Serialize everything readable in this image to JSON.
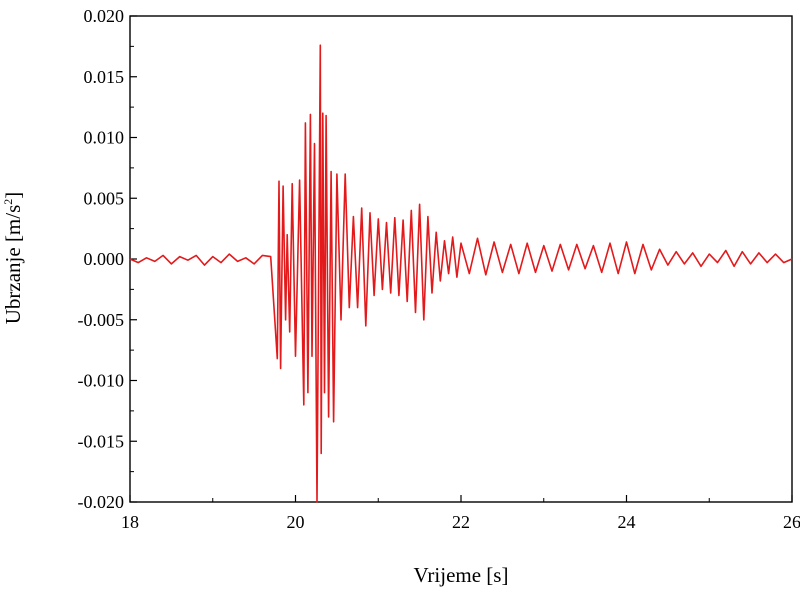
{
  "chart_data": {
    "type": "line",
    "xlabel": "Vrijeme [s]",
    "ylabel": "Ubrzanje [m/s",
    "ylabel_sup": "2",
    "ylabel_close": "]",
    "xlim": [
      18,
      26
    ],
    "ylim": [
      -0.02,
      0.02
    ],
    "x_ticks": [
      "18",
      "20",
      "22",
      "24",
      "26"
    ],
    "x_tick_values": [
      18,
      20,
      22,
      24,
      26
    ],
    "y_ticks": [
      "0.020",
      "0.015",
      "0.010",
      "0.005",
      "0.000",
      "-0.005",
      "-0.010",
      "-0.015",
      "-0.020"
    ],
    "y_tick_values": [
      0.02,
      0.015,
      0.01,
      0.005,
      0.0,
      -0.005,
      -0.01,
      -0.015,
      -0.02
    ],
    "grid": false,
    "series": [
      {
        "color": "#e31a1c",
        "x": [
          18.0,
          18.1,
          18.2,
          18.3,
          18.4,
          18.5,
          18.6,
          18.7,
          18.8,
          18.9,
          19.0,
          19.1,
          19.2,
          19.3,
          19.4,
          19.5,
          19.6,
          19.7,
          19.78,
          19.8,
          19.82,
          19.85,
          19.88,
          19.9,
          19.93,
          19.96,
          20.0,
          20.05,
          20.1,
          20.12,
          20.15,
          20.18,
          20.2,
          20.23,
          20.26,
          20.3,
          20.31,
          20.33,
          20.35,
          20.37,
          20.4,
          20.43,
          20.46,
          20.5,
          20.55,
          20.6,
          20.65,
          20.7,
          20.75,
          20.8,
          20.85,
          20.9,
          20.95,
          21.0,
          21.05,
          21.1,
          21.15,
          21.2,
          21.25,
          21.3,
          21.35,
          21.4,
          21.45,
          21.5,
          21.55,
          21.6,
          21.65,
          21.7,
          21.75,
          21.8,
          21.85,
          21.9,
          21.95,
          22.0,
          22.1,
          22.2,
          22.3,
          22.4,
          22.5,
          22.6,
          22.7,
          22.8,
          22.9,
          23.0,
          23.1,
          23.2,
          23.3,
          23.4,
          23.5,
          23.6,
          23.7,
          23.8,
          23.9,
          24.0,
          24.1,
          24.2,
          24.3,
          24.4,
          24.5,
          24.6,
          24.7,
          24.8,
          24.9,
          25.0,
          25.1,
          25.2,
          25.3,
          25.4,
          25.5,
          25.6,
          25.7,
          25.8,
          25.9,
          26.0
        ],
        "y": [
          0.0,
          -0.0003,
          0.0001,
          -0.0002,
          0.0003,
          -0.0004,
          0.0002,
          -0.0001,
          0.0003,
          -0.0005,
          0.0002,
          -0.0003,
          0.0004,
          -0.0002,
          0.0001,
          -0.0004,
          0.0003,
          0.0002,
          -0.0082,
          0.0064,
          -0.009,
          0.006,
          -0.005,
          0.002,
          -0.006,
          0.0062,
          -0.008,
          0.0065,
          -0.012,
          0.0112,
          -0.011,
          0.0119,
          -0.008,
          0.0095,
          -0.0205,
          0.0176,
          -0.016,
          0.012,
          -0.011,
          0.0118,
          -0.013,
          0.0072,
          -0.0134,
          0.007,
          -0.005,
          0.007,
          -0.004,
          0.0035,
          -0.004,
          0.0042,
          -0.0055,
          0.0038,
          -0.003,
          0.0033,
          -0.0025,
          0.003,
          -0.0028,
          0.0034,
          -0.003,
          0.0032,
          -0.0035,
          0.004,
          -0.0044,
          0.0045,
          -0.005,
          0.0035,
          -0.0028,
          0.0022,
          -0.0018,
          0.0015,
          -0.0012,
          0.0018,
          -0.0015,
          0.0013,
          -0.0012,
          0.0017,
          -0.0013,
          0.0014,
          -0.0011,
          0.0012,
          -0.0012,
          0.0013,
          -0.0011,
          0.0011,
          -0.001,
          0.0012,
          -0.0009,
          0.0012,
          -0.0008,
          0.0011,
          -0.0011,
          0.0013,
          -0.0012,
          0.0014,
          -0.0012,
          0.0012,
          -0.0009,
          0.0008,
          -0.0005,
          0.0006,
          -0.0004,
          0.0005,
          -0.0006,
          0.0004,
          -0.0003,
          0.0007,
          -0.0006,
          0.0006,
          -0.0004,
          0.0005,
          -0.0003,
          0.0004,
          -0.0003,
          0.0
        ]
      }
    ]
  }
}
